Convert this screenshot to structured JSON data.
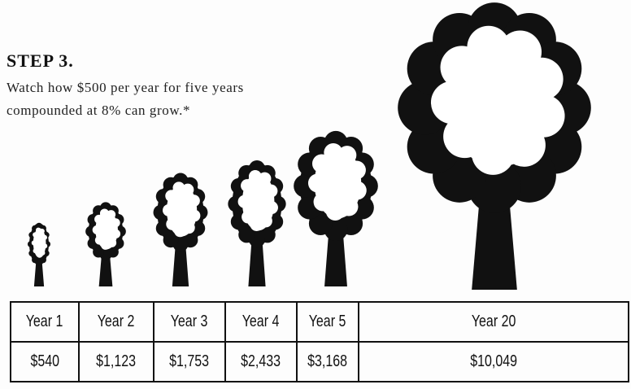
{
  "header": {
    "step": "STEP 3.",
    "lines": [
      "Watch how $500 per year for five years",
      "compounded at 8% can grow.*"
    ]
  },
  "table": {
    "rows": [
      [
        "Year 1",
        "Year 2",
        "Year 3",
        "Year 4",
        "Year 5",
        "Year 20"
      ],
      [
        "$540",
        "$1,123",
        "$1,753",
        "$2,433",
        "$3,168",
        "$10,049"
      ]
    ]
  }
}
